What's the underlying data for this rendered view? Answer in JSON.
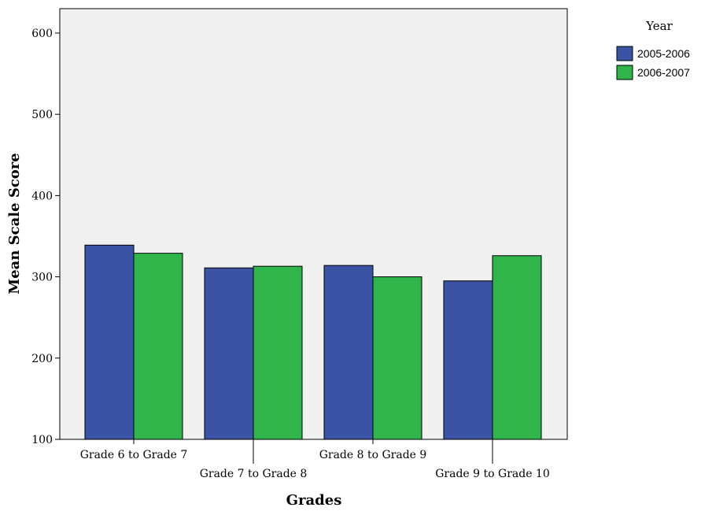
{
  "chart_data": {
    "type": "bar",
    "xlabel": "Grades",
    "ylabel": "Mean Scale Score",
    "ylim": [
      100,
      630
    ],
    "yticks": [
      100,
      200,
      300,
      400,
      500,
      600
    ],
    "categories": [
      "Grade 6 to Grade 7",
      "Grade 7 to Grade 8",
      "Grade 8 to Grade 9",
      "Grade 9 to Grade 10"
    ],
    "legend": {
      "title": "Year",
      "placement": "top-right outside"
    },
    "series": [
      {
        "name": "2005-2006",
        "color": "#3a53a4",
        "values": [
          339,
          311,
          314,
          295
        ]
      },
      {
        "name": "2006-2007",
        "color": "#2fb54a",
        "values": [
          329,
          313,
          300,
          326
        ]
      }
    ],
    "plot_background": "#f0f0f0",
    "grid": false
  }
}
